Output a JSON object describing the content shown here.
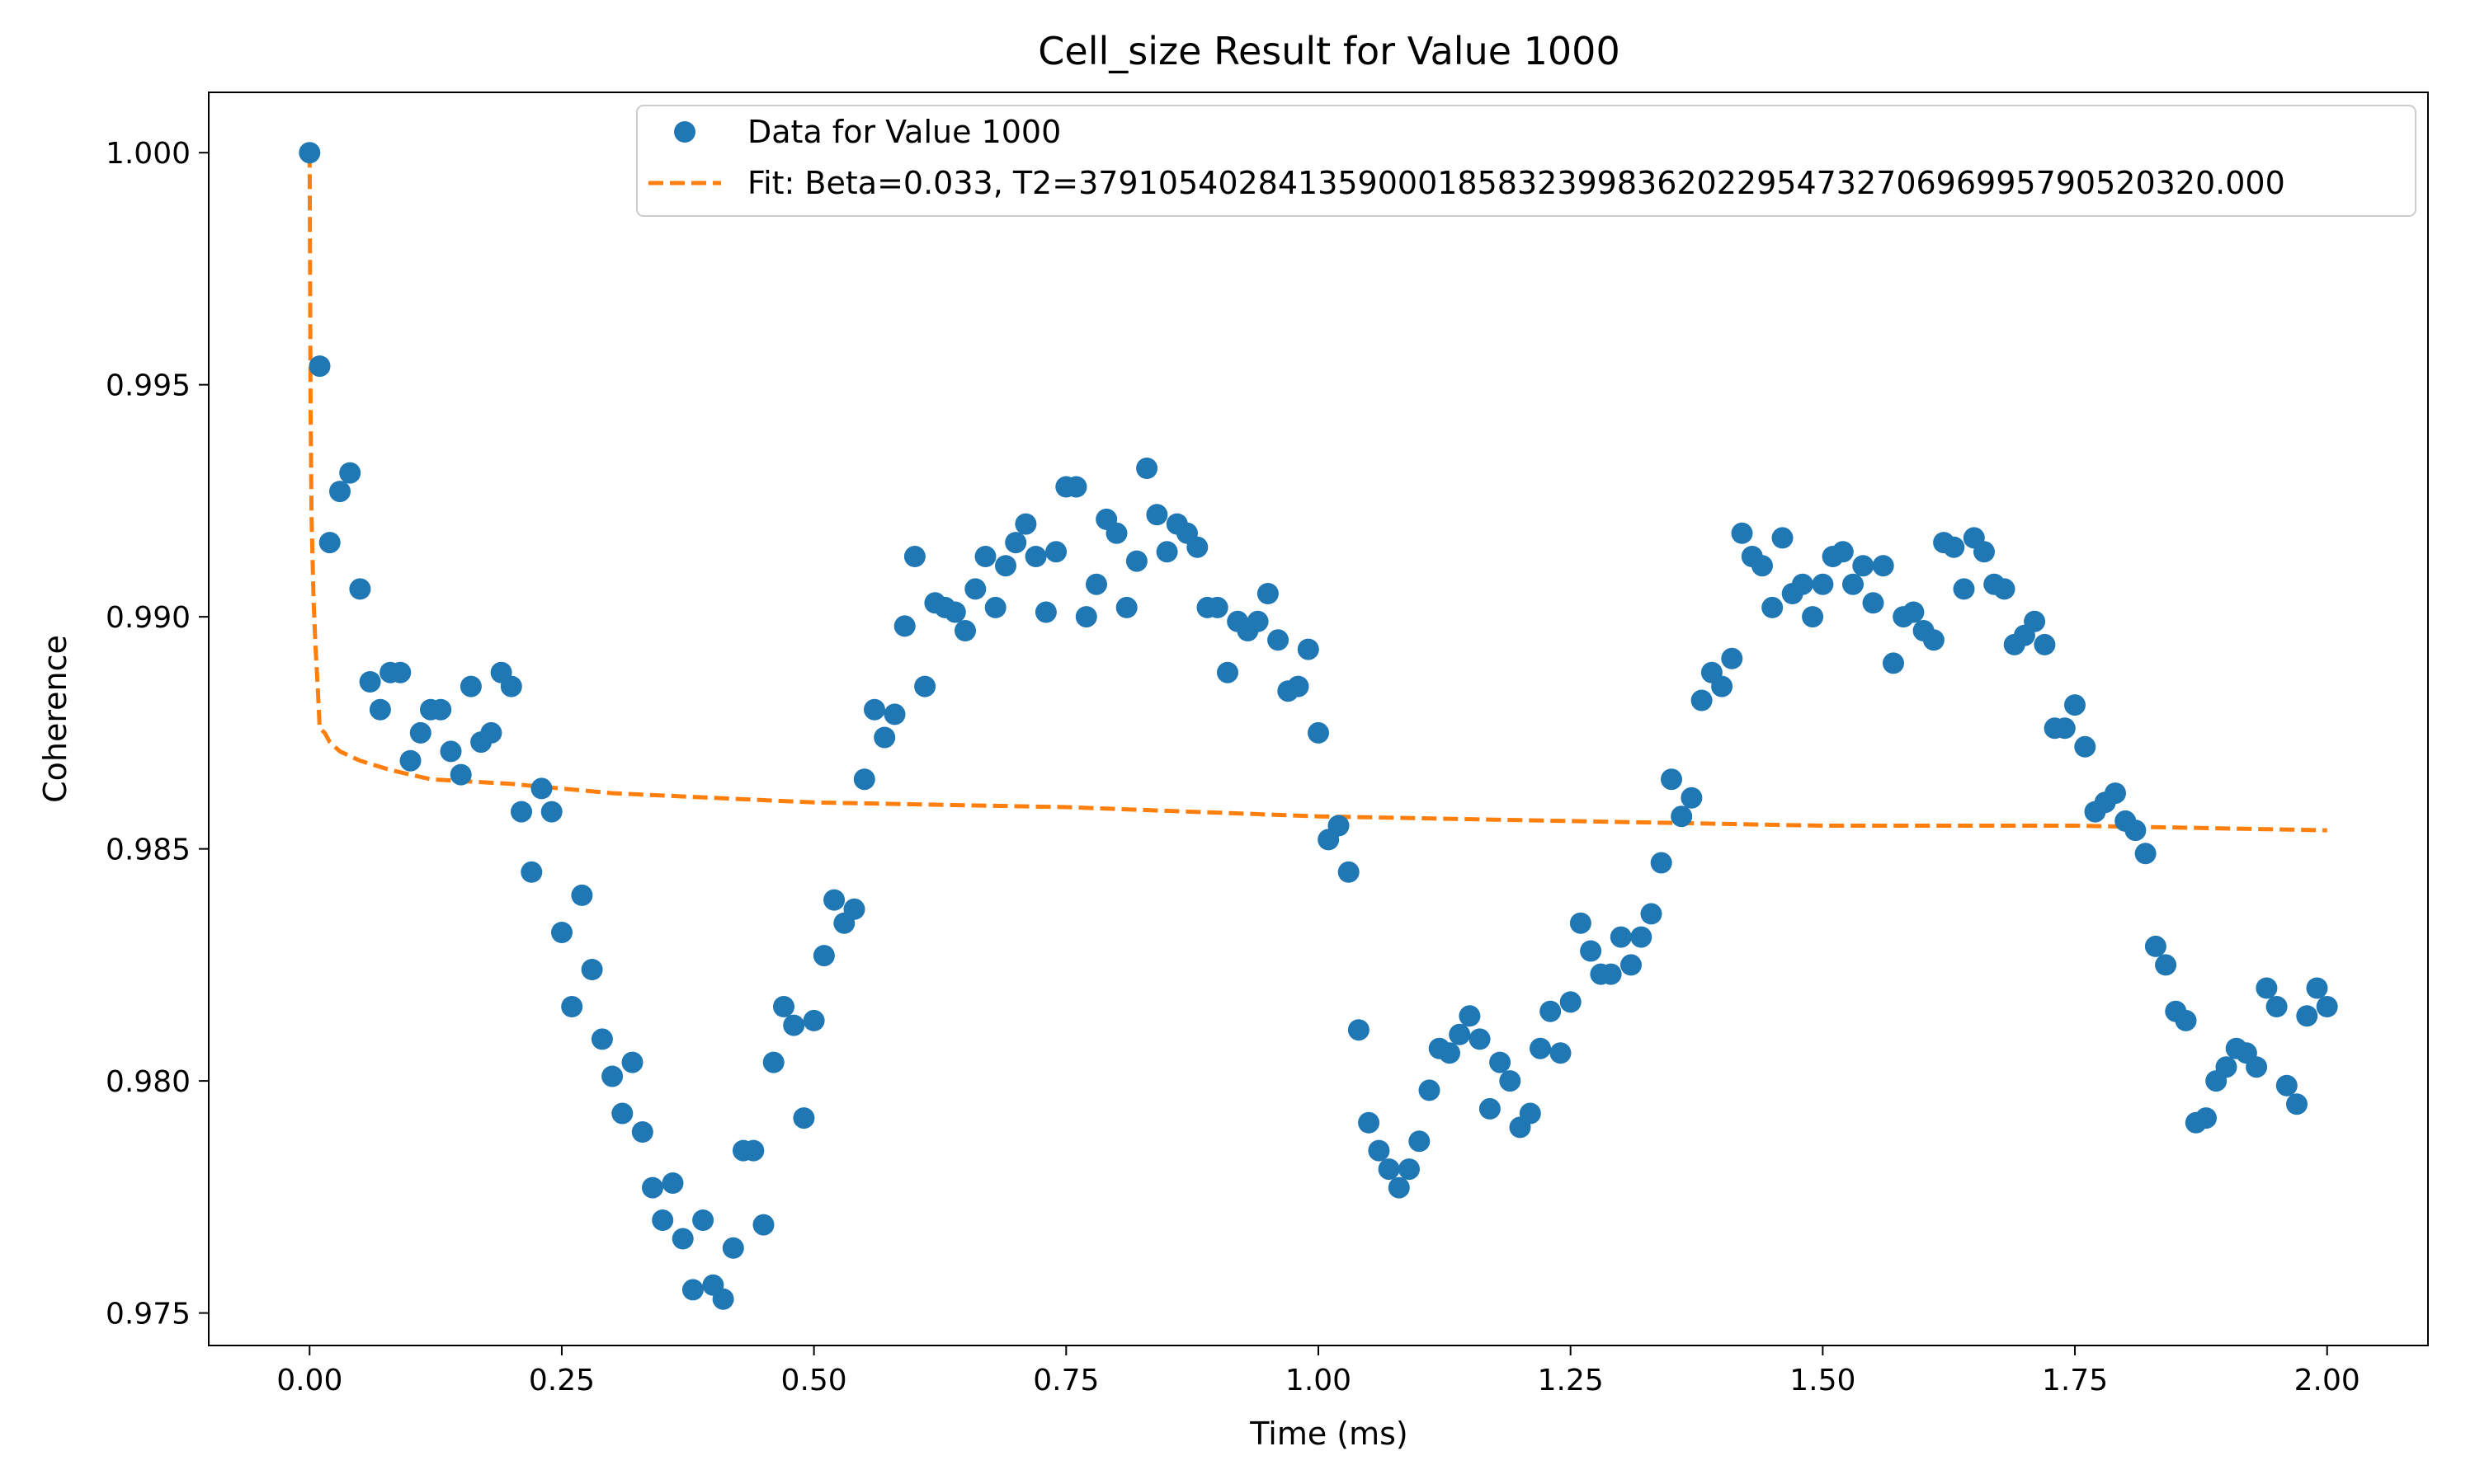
{
  "chart_data": {
    "type": "scatter",
    "title": "Cell_size Result for Value 1000",
    "xlabel": "Time (ms)",
    "ylabel": "Coherence",
    "xlim": [
      -0.1,
      2.1
    ],
    "ylim": [
      0.9743,
      1.0013
    ],
    "xticks": [
      0.0,
      0.25,
      0.5,
      0.75,
      1.0,
      1.25,
      1.5,
      1.75,
      2.0
    ],
    "xtick_labels": [
      "0.00",
      "0.25",
      "0.50",
      "0.75",
      "1.00",
      "1.25",
      "1.50",
      "1.75",
      "2.00"
    ],
    "yticks": [
      0.975,
      0.98,
      0.985,
      0.99,
      0.995,
      1.0
    ],
    "ytick_labels": [
      "0.975",
      "0.980",
      "0.985",
      "0.990",
      "0.995",
      "1.000"
    ],
    "grid": false,
    "legend_position": "top-right",
    "series": [
      {
        "name": "Data for Value 1000",
        "kind": "scatter",
        "color": "#1f77b4",
        "x": [
          0.0,
          0.01,
          0.02,
          0.03,
          0.04,
          0.05,
          0.06,
          0.07,
          0.08,
          0.09,
          0.1,
          0.11,
          0.12,
          0.13,
          0.14,
          0.15,
          0.16,
          0.17,
          0.18,
          0.19,
          0.2,
          0.21,
          0.22,
          0.23,
          0.24,
          0.25,
          0.26,
          0.27,
          0.28,
          0.29,
          0.3,
          0.31,
          0.32,
          0.33,
          0.34,
          0.35,
          0.36,
          0.37,
          0.38,
          0.39,
          0.4,
          0.41,
          0.42,
          0.43,
          0.44,
          0.45,
          0.46,
          0.47,
          0.48,
          0.49,
          0.5,
          0.51,
          0.52,
          0.53,
          0.54,
          0.55,
          0.56,
          0.57,
          0.58,
          0.59,
          0.6,
          0.61,
          0.62,
          0.63,
          0.64,
          0.65,
          0.66,
          0.67,
          0.68,
          0.69,
          0.7,
          0.71,
          0.72,
          0.73,
          0.74,
          0.75,
          0.76,
          0.77,
          0.78,
          0.79,
          0.8,
          0.81,
          0.82,
          0.83,
          0.84,
          0.85,
          0.86,
          0.87,
          0.88,
          0.89,
          0.9,
          0.91,
          0.92,
          0.93,
          0.94,
          0.95,
          0.96,
          0.97,
          0.98,
          0.99,
          1.0,
          1.01,
          1.02,
          1.03,
          1.04,
          1.05,
          1.06,
          1.07,
          1.08,
          1.09,
          1.1,
          1.11,
          1.12,
          1.13,
          1.14,
          1.15,
          1.16,
          1.17,
          1.18,
          1.19,
          1.2,
          1.21,
          1.22,
          1.23,
          1.24,
          1.25,
          1.26,
          1.27,
          1.28,
          1.29,
          1.3,
          1.31,
          1.32,
          1.33,
          1.34,
          1.35,
          1.36,
          1.37,
          1.38,
          1.39,
          1.4,
          1.41,
          1.42,
          1.43,
          1.44,
          1.45,
          1.46,
          1.47,
          1.48,
          1.49,
          1.5,
          1.51,
          1.52,
          1.53,
          1.54,
          1.55,
          1.56,
          1.57,
          1.58,
          1.59,
          1.6,
          1.61,
          1.62,
          1.63,
          1.64,
          1.65,
          1.66,
          1.67,
          1.68,
          1.69,
          1.7,
          1.71,
          1.72,
          1.73,
          1.74,
          1.75,
          1.76,
          1.77,
          1.78,
          1.79,
          1.8,
          1.81,
          1.82,
          1.83,
          1.84,
          1.85,
          1.86,
          1.87,
          1.88,
          1.89,
          1.9,
          1.91,
          1.92,
          1.93,
          1.94,
          1.95,
          1.96,
          1.97,
          1.98,
          1.99,
          2.0
        ],
        "y": [
          1.0,
          0.9954,
          0.9916,
          0.9927,
          0.9931,
          0.9906,
          0.9886,
          0.988,
          0.9888,
          0.9888,
          0.9869,
          0.9875,
          0.988,
          0.988,
          0.9871,
          0.9866,
          0.9885,
          0.9873,
          0.9875,
          0.9888,
          0.9885,
          0.9858,
          0.9845,
          0.9863,
          0.9858,
          0.9832,
          0.9816,
          0.984,
          0.9824,
          0.9809,
          0.9801,
          0.9793,
          0.9804,
          0.9789,
          0.9777,
          0.977,
          0.9778,
          0.9766,
          0.9755,
          0.977,
          0.9756,
          0.9753,
          0.9764,
          0.9785,
          0.9785,
          0.9769,
          0.9804,
          0.9816,
          0.9812,
          0.9792,
          0.9813,
          0.9827,
          0.9839,
          0.9834,
          0.9837,
          0.9865,
          0.988,
          0.9874,
          0.9879,
          0.9898,
          0.9913,
          0.9885,
          0.9903,
          0.9902,
          0.9901,
          0.9897,
          0.9906,
          0.9913,
          0.9902,
          0.9911,
          0.9916,
          0.992,
          0.9913,
          0.9901,
          0.9914,
          0.9928,
          0.9928,
          0.99,
          0.9907,
          0.9921,
          0.9918,
          0.9902,
          0.9912,
          0.9932,
          0.9922,
          0.9914,
          0.992,
          0.9918,
          0.9915,
          0.9902,
          0.9902,
          0.9888,
          0.9899,
          0.9897,
          0.9899,
          0.9905,
          0.9895,
          0.9884,
          0.9885,
          0.9893,
          0.9875,
          0.9852,
          0.9855,
          0.9845,
          0.9811,
          0.9791,
          0.9785,
          0.9781,
          0.9777,
          0.9781,
          0.9787,
          0.9798,
          0.9807,
          0.9806,
          0.981,
          0.9814,
          0.9809,
          0.9794,
          0.9804,
          0.98,
          0.979,
          0.9793,
          0.9807,
          0.9815,
          0.9806,
          0.9817,
          0.9834,
          0.9828,
          0.9823,
          0.9823,
          0.9831,
          0.9825,
          0.9831,
          0.9836,
          0.9847,
          0.9865,
          0.9857,
          0.9861,
          0.9882,
          0.9888,
          0.9885,
          0.9891,
          0.9918,
          0.9913,
          0.9911,
          0.9902,
          0.9917,
          0.9905,
          0.9907,
          0.99,
          0.9907,
          0.9913,
          0.9914,
          0.9907,
          0.9911,
          0.9903,
          0.9911,
          0.989,
          0.99,
          0.9901,
          0.9897,
          0.9895,
          0.9916,
          0.9915,
          0.9906,
          0.9917,
          0.9914,
          0.9907,
          0.9906,
          0.9894,
          0.9896,
          0.9899,
          0.9894,
          0.9876,
          0.9876,
          0.9881,
          0.9872,
          0.9858,
          0.986,
          0.9862,
          0.9856,
          0.9854,
          0.9849,
          0.9829,
          0.9825,
          0.9815,
          0.9813,
          0.9791,
          0.9792,
          0.98,
          0.9803,
          0.9807,
          0.9806,
          0.9803,
          0.982,
          0.9816,
          0.9799,
          0.9795,
          0.9814,
          0.982,
          0.9816
        ]
      },
      {
        "name": "Fit: Beta=0.033, T2=379105402841359000185832399836202295473270696995790520320.000",
        "kind": "dashed-line",
        "color": "#ff7f0e",
        "x": [
          0.0,
          0.001,
          0.002,
          0.004,
          0.006,
          0.008,
          0.01,
          0.015,
          0.02,
          0.03,
          0.05,
          0.08,
          0.12,
          0.2,
          0.3,
          0.5,
          0.75,
          1.0,
          1.25,
          1.5,
          1.75,
          2.0
        ],
        "y": [
          1.0,
          0.9944,
          0.9921,
          0.9903,
          0.9893,
          0.9885,
          0.9876,
          0.9875,
          0.9873,
          0.9871,
          0.9869,
          0.9867,
          0.9865,
          0.9864,
          0.9862,
          0.986,
          0.9859,
          0.9857,
          0.9856,
          0.9855,
          0.9855,
          0.9854
        ]
      }
    ]
  }
}
